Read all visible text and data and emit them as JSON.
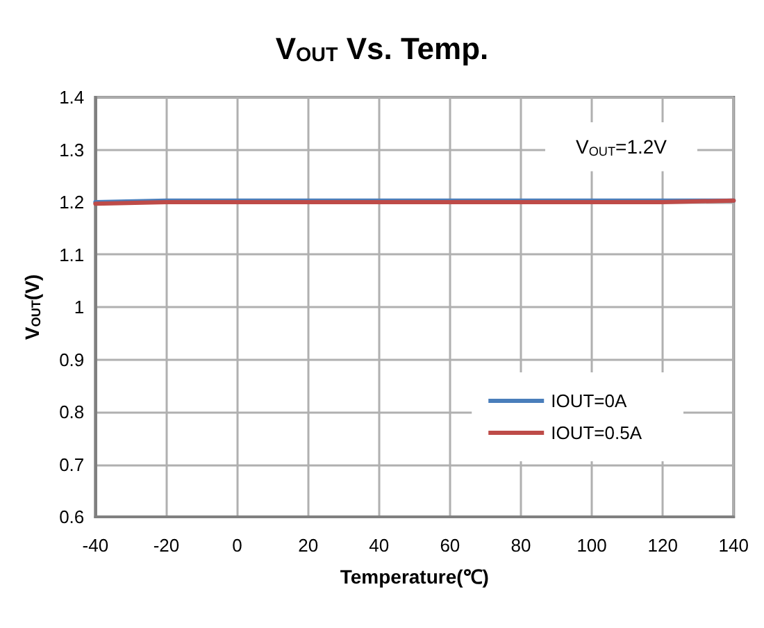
{
  "chart_data": {
    "type": "line",
    "title": "V$_{OUT}$ Vs. Temp.",
    "xlabel": "Temperature(℃)",
    "ylabel": "V$_{OUT}$(V)",
    "annotations": [
      "V$_{OUT}$=1.2V"
    ],
    "x": [
      -40,
      -20,
      0,
      40,
      80,
      120,
      140
    ],
    "series": [
      {
        "name": "IOUT=0A",
        "color": "#4a7ebb",
        "values": [
          1.2,
          1.203,
          1.203,
          1.203,
          1.203,
          1.203,
          1.203
        ]
      },
      {
        "name": "IOUT=0.5A",
        "color": "#be4b48",
        "values": [
          1.197,
          1.2,
          1.2,
          1.2,
          1.2,
          1.2,
          1.203
        ]
      }
    ],
    "xlim": [
      -40,
      140
    ],
    "xticks": [
      -40,
      -20,
      0,
      20,
      40,
      60,
      80,
      100,
      120,
      140
    ],
    "ylim": [
      0.6,
      1.4
    ],
    "yticks": [
      0.6,
      0.7,
      0.8,
      0.9,
      1,
      1.1,
      1.2,
      1.3,
      1.4
    ],
    "grid": true,
    "legend": "bottom right",
    "marker": "none",
    "line_style": "solid"
  }
}
